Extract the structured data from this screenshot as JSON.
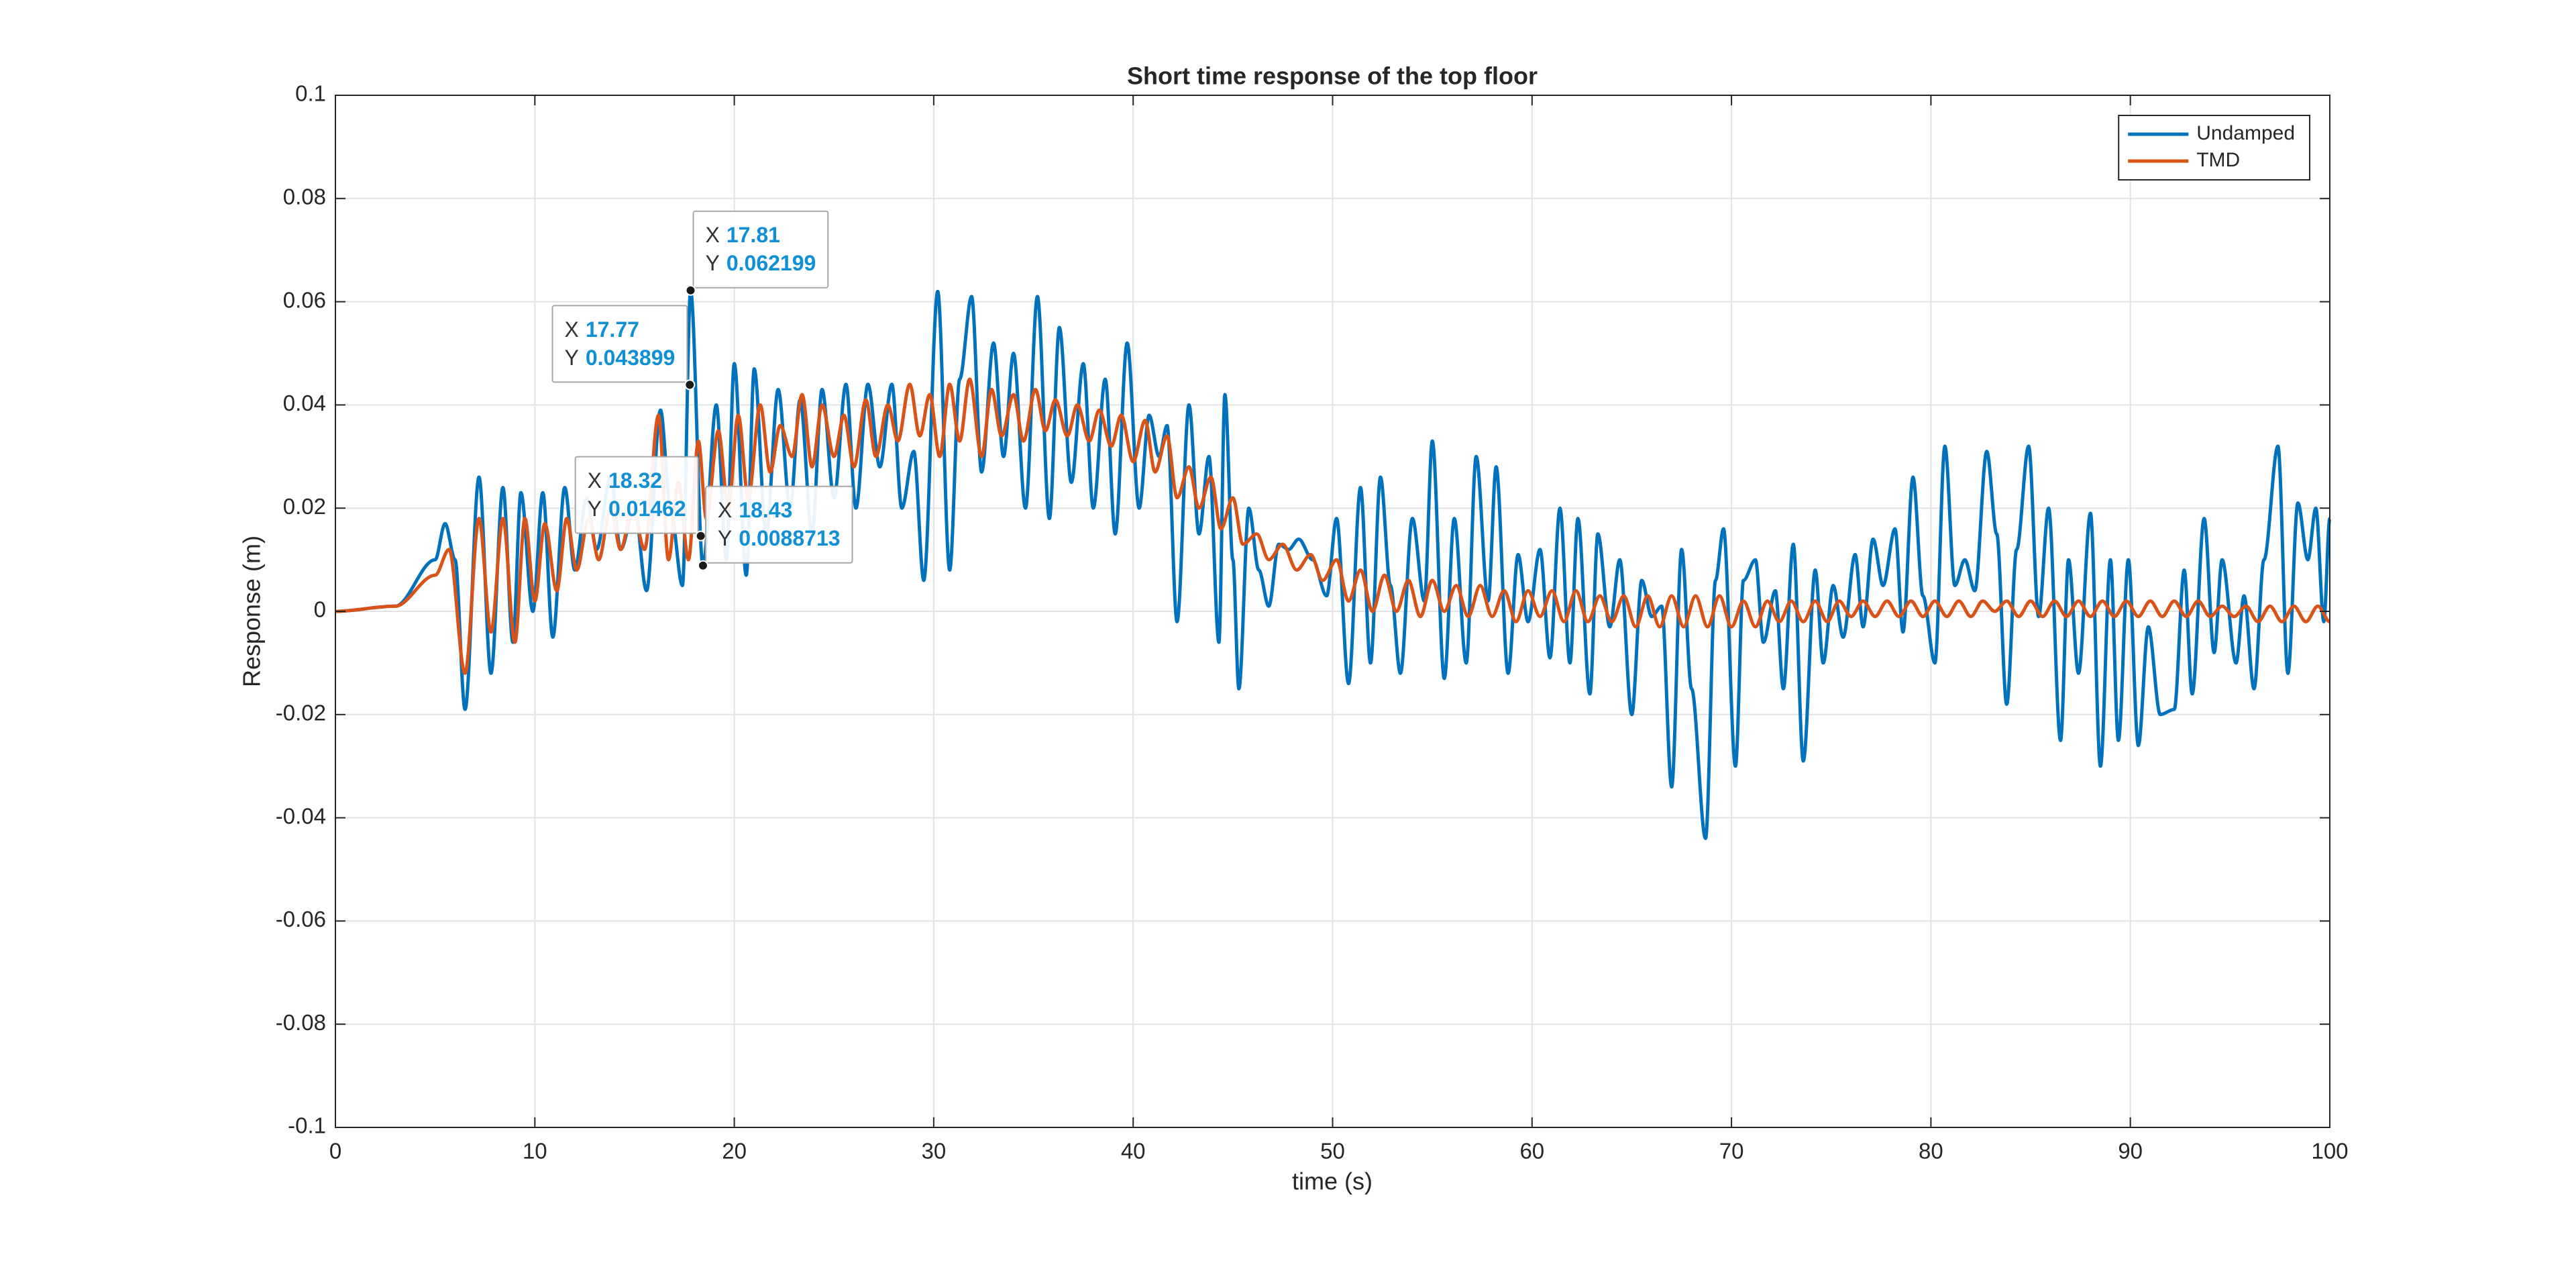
{
  "chart_data": {
    "type": "line",
    "title": "Short time response of the top floor",
    "x_label": "time (s)",
    "y_label": "Response (m)",
    "xlim": [
      0,
      100
    ],
    "ylim": [
      -0.1,
      0.1
    ],
    "xticks": [
      0,
      10,
      20,
      30,
      40,
      50,
      60,
      70,
      80,
      90,
      100
    ],
    "yticks": [
      -0.1,
      -0.08,
      -0.06,
      -0.04,
      -0.02,
      0,
      0.02,
      0.04,
      0.06,
      0.08,
      0.1
    ],
    "grid": true,
    "legend": "northeast",
    "series": [
      {
        "name": "Undamped",
        "color": "#0072BD",
        "x": [
          0,
          3,
          5,
          5.5,
          6.0,
          6.5,
          7.2,
          7.8,
          8.4,
          8.9,
          9.3,
          9.9,
          10.4,
          10.9,
          11.5,
          12,
          12.6,
          13.1,
          13.8,
          14.3,
          15,
          15.6,
          16.3,
          16.8,
          17.4,
          17.81,
          18.43,
          19.1,
          19.6,
          20.0,
          20.6,
          21.0,
          21.6,
          22.2,
          22.8,
          23.3,
          23.9,
          24.4,
          25.0,
          25.6,
          26.1,
          26.7,
          27.3,
          27.9,
          28.4,
          29.0,
          29.5,
          30.2,
          30.8,
          31.3,
          31.9,
          32.4,
          33.0,
          33.5,
          34.0,
          34.6,
          35.2,
          35.8,
          36.3,
          36.9,
          37.5,
          38.0,
          38.6,
          39.1,
          39.7,
          40.3,
          40.8,
          41.3,
          41.7,
          42.2,
          42.8,
          43.3,
          43.8,
          44.3,
          44.6,
          45.0,
          45.3,
          45.8,
          46.3,
          46.8,
          47.3,
          47.8,
          48.3,
          49.0,
          49.7,
          50.2,
          50.8,
          51.4,
          51.9,
          52.4,
          52.9,
          53.4,
          54.0,
          54.6,
          55.0,
          55.6,
          56.1,
          56.7,
          57.2,
          57.8,
          58.2,
          58.8,
          59.3,
          59.8,
          60.4,
          60.9,
          61.4,
          61.9,
          62.3,
          62.9,
          63.3,
          63.9,
          64.4,
          65.0,
          65.5,
          66.0,
          66.5,
          67.0,
          67.5,
          68.0,
          68.7,
          69.2,
          69.6,
          70.2,
          70.6,
          71.2,
          71.6,
          72.2,
          72.6,
          73.1,
          73.6,
          74.2,
          74.6,
          75.1,
          75.6,
          76.2,
          76.6,
          77.1,
          77.6,
          78.2,
          78.6,
          79.1,
          79.6,
          80.2,
          80.7,
          81.2,
          81.7,
          82.2,
          82.8,
          83.3,
          83.8,
          84.3,
          84.9,
          85.4,
          85.9,
          86.5,
          86.9,
          87.4,
          88.0,
          88.5,
          89.0,
          89.4,
          89.9,
          90.4,
          90.9,
          91.5,
          92.2,
          92.7,
          93.1,
          93.7,
          94.2,
          94.6,
          95.3,
          95.7,
          96.2,
          96.7,
          97.4,
          97.9,
          98.4,
          98.9,
          99.3,
          99.7,
          100
        ],
        "values": [
          0,
          0.001,
          0.01,
          0.017,
          0.01,
          -0.019,
          0.026,
          -0.012,
          0.024,
          -0.006,
          0.023,
          0.0,
          0.023,
          -0.005,
          0.024,
          0.008,
          0.022,
          0.012,
          0.026,
          0.012,
          0.02,
          0.004,
          0.039,
          0.02,
          0.005,
          0.062199,
          0.0088713,
          0.04,
          0.01,
          0.048,
          0.007,
          0.047,
          0.015,
          0.043,
          0.02,
          0.041,
          0.015,
          0.043,
          0.022,
          0.044,
          0.02,
          0.044,
          0.028,
          0.044,
          0.02,
          0.031,
          0.006,
          0.062,
          0.008,
          0.045,
          0.061,
          0.027,
          0.052,
          0.03,
          0.05,
          0.02,
          0.061,
          0.018,
          0.055,
          0.025,
          0.048,
          0.02,
          0.045,
          0.015,
          0.052,
          0.02,
          0.038,
          0.03,
          0.036,
          -0.002,
          0.04,
          0.015,
          0.03,
          -0.006,
          0.042,
          0.01,
          -0.015,
          0.02,
          0.008,
          0.001,
          0.013,
          0.012,
          0.014,
          0.01,
          0.003,
          0.018,
          -0.014,
          0.024,
          -0.01,
          0.026,
          0.005,
          -0.012,
          0.018,
          0.002,
          0.033,
          -0.013,
          0.018,
          -0.01,
          0.03,
          0.002,
          0.028,
          -0.012,
          0.011,
          -0.002,
          0.012,
          -0.009,
          0.02,
          -0.01,
          0.018,
          -0.016,
          0.015,
          -0.003,
          0.01,
          -0.02,
          0.006,
          -0.001,
          0.001,
          -0.034,
          0.012,
          -0.015,
          -0.044,
          0.006,
          0.016,
          -0.03,
          0.006,
          0.01,
          -0.006,
          0.004,
          -0.015,
          0.013,
          -0.029,
          0.008,
          -0.01,
          0.005,
          -0.005,
          0.011,
          -0.003,
          0.014,
          0.005,
          0.016,
          -0.004,
          0.026,
          0.003,
          -0.01,
          0.032,
          0.005,
          0.01,
          0.004,
          0.031,
          0.015,
          -0.018,
          0.012,
          0.032,
          -0.001,
          0.02,
          -0.025,
          0.01,
          -0.012,
          0.019,
          -0.03,
          0.01,
          -0.025,
          0.01,
          -0.026,
          -0.003,
          -0.02,
          -0.019,
          0.008,
          -0.016,
          0.018,
          -0.008,
          0.01,
          -0.01,
          0.003,
          -0.015,
          0.01,
          0.032,
          -0.012,
          0.021,
          0.01,
          0.02,
          -0.002,
          0.018
        ]
      },
      {
        "name": "TMD",
        "color": "#D95319",
        "x": [
          0,
          3,
          5,
          5.7,
          6.5,
          7.2,
          7.8,
          8.4,
          9,
          9.5,
          10,
          10.5,
          11.1,
          11.6,
          12.1,
          12.7,
          13.2,
          13.8,
          14.3,
          14.9,
          15.5,
          16.2,
          16.7,
          17.2,
          17.7,
          18.2,
          18.6,
          19.2,
          19.7,
          20.2,
          20.7,
          21.3,
          21.8,
          22.3,
          22.9,
          23.4,
          23.9,
          24.4,
          25,
          25.5,
          26,
          26.6,
          27.1,
          27.7,
          28.2,
          28.8,
          29.3,
          29.8,
          30.3,
          30.8,
          31.3,
          31.8,
          32.4,
          32.9,
          33.4,
          34,
          34.5,
          35.1,
          35.6,
          36.1,
          36.7,
          37.2,
          37.8,
          38.3,
          38.9,
          39.4,
          40,
          40.6,
          41.1,
          41.7,
          42.2,
          42.8,
          43.3,
          43.9,
          44.4,
          45,
          45.5,
          46.2,
          46.8,
          47.5,
          48.2,
          48.9,
          49.5,
          50.2,
          50.8,
          51.4,
          52,
          52.6,
          53.2,
          53.8,
          54.4,
          55,
          55.6,
          56.2,
          56.8,
          57.4,
          58,
          58.6,
          59.2,
          59.8,
          60.4,
          61,
          61.6,
          62.2,
          62.8,
          63.4,
          64,
          64.6,
          65.2,
          65.8,
          66.4,
          67,
          67.6,
          68.2,
          68.8,
          69.4,
          70,
          70.6,
          71.2,
          71.8,
          72.4,
          73.0,
          73.6,
          74.2,
          74.8,
          75.4,
          76.0,
          76.6,
          77.2,
          77.8,
          78.4,
          79.0,
          79.6,
          80.2,
          80.8,
          81.4,
          82.0,
          82.6,
          83.2,
          83.8,
          84.4,
          85.0,
          85.6,
          86.2,
          86.8,
          87.4,
          88.0,
          88.6,
          89.2,
          89.8,
          90.4,
          91.0,
          91.6,
          92.2,
          92.8,
          93.4,
          94.0,
          94.6,
          95.2,
          95.8,
          96.4,
          97.0,
          97.6,
          98.2,
          98.8,
          99.4,
          100
        ],
        "values": [
          0,
          0.001,
          0.007,
          0.012,
          -0.012,
          0.018,
          -0.004,
          0.018,
          -0.006,
          0.018,
          0.002,
          0.017,
          0.004,
          0.018,
          0.008,
          0.018,
          0.01,
          0.02,
          0.012,
          0.02,
          0.012,
          0.038,
          0.01,
          0.025,
          0.01,
          0.033,
          0.018,
          0.035,
          0.02,
          0.038,
          0.022,
          0.04,
          0.027,
          0.036,
          0.03,
          0.042,
          0.028,
          0.04,
          0.03,
          0.038,
          0.028,
          0.041,
          0.03,
          0.04,
          0.033,
          0.044,
          0.034,
          0.042,
          0.03,
          0.044,
          0.033,
          0.045,
          0.03,
          0.043,
          0.034,
          0.042,
          0.033,
          0.043,
          0.035,
          0.041,
          0.034,
          0.04,
          0.033,
          0.039,
          0.032,
          0.038,
          0.029,
          0.037,
          0.027,
          0.034,
          0.022,
          0.028,
          0.02,
          0.026,
          0.016,
          0.022,
          0.013,
          0.015,
          0.01,
          0.013,
          0.008,
          0.011,
          0.006,
          0.01,
          0.002,
          0.008,
          0.0,
          0.007,
          0.0,
          0.006,
          -0.001,
          0.006,
          0.0,
          0.005,
          -0.001,
          0.005,
          -0.001,
          0.004,
          -0.002,
          0.004,
          -0.001,
          0.004,
          -0.002,
          0.004,
          -0.002,
          0.003,
          -0.002,
          0.003,
          -0.003,
          0.003,
          -0.003,
          0.003,
          -0.003,
          0.003,
          -0.003,
          0.003,
          -0.003,
          0.002,
          -0.003,
          0.002,
          -0.002,
          0.002,
          -0.002,
          0.002,
          -0.002,
          0.002,
          -0.001,
          0.002,
          -0.001,
          0.002,
          -0.001,
          0.002,
          -0.001,
          0.002,
          -0.001,
          0.002,
          -0.001,
          0.002,
          0.0,
          0.002,
          -0.001,
          0.002,
          -0.001,
          0.002,
          -0.001,
          0.002,
          -0.001,
          0.002,
          -0.001,
          0.002,
          -0.001,
          0.002,
          -0.001,
          0.002,
          -0.001,
          0.002,
          -0.001,
          0.001,
          -0.001,
          0.001,
          -0.002,
          0.001,
          -0.002,
          0.001,
          -0.002,
          0.001,
          -0.002
        ]
      }
    ],
    "datatip_labels": [
      "X",
      "Y"
    ],
    "datatips": [
      {
        "x": 17.81,
        "y": 0.062199
      },
      {
        "x": 17.77,
        "y": 0.043899
      },
      {
        "x": 18.32,
        "y": 0.01462
      },
      {
        "x": 18.43,
        "y": 0.0088713
      }
    ]
  }
}
